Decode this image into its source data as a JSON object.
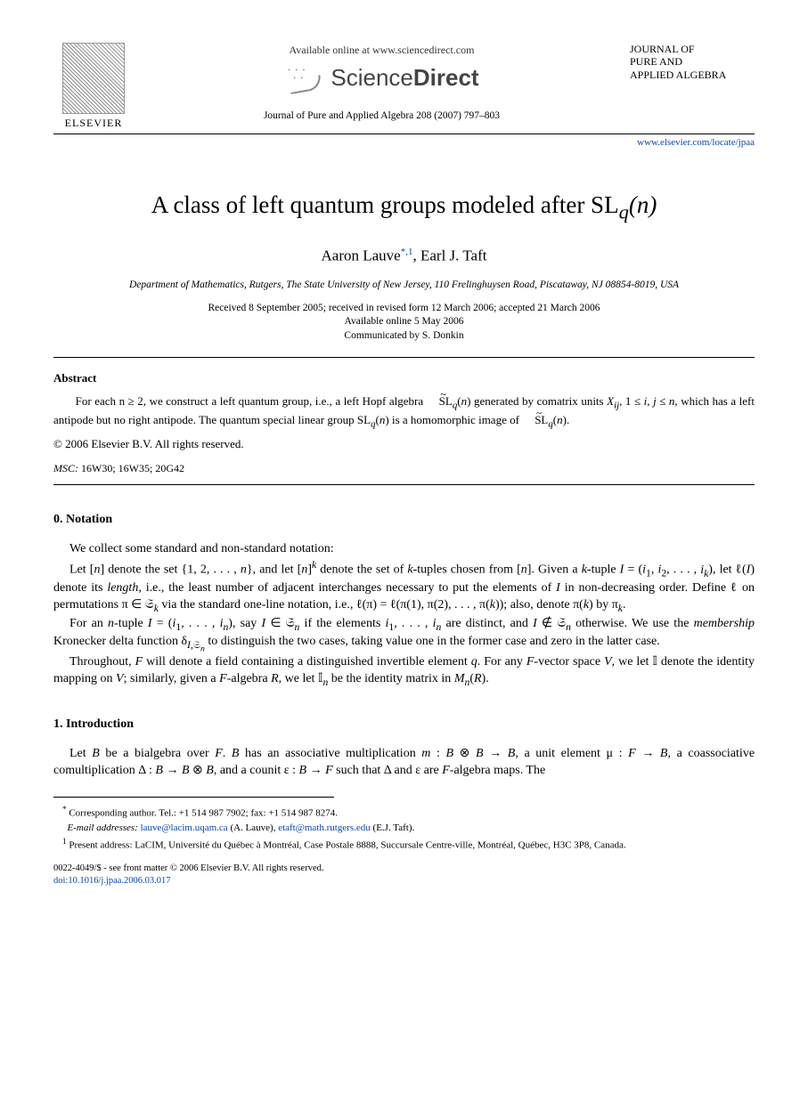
{
  "header": {
    "elsevier": "ELSEVIER",
    "available_online": "Available online at www.sciencedirect.com",
    "sciencedirect_a": "Science",
    "sciencedirect_b": "Direct",
    "journal_ref": "Journal of Pure and Applied Algebra 208 (2007) 797–803",
    "journal_name_l1": "JOURNAL OF",
    "journal_name_l2": "PURE AND",
    "journal_name_l3": "APPLIED ALGEBRA",
    "locate_url": "www.elsevier.com/locate/jpaa"
  },
  "title": {
    "main": "A class of left quantum groups modeled after SL",
    "sub_q": "q",
    "sub_n": "(n)"
  },
  "authors": {
    "a1": "Aaron Lauve",
    "a1_marks": "*,1",
    "sep": ", ",
    "a2": "Earl J. Taft"
  },
  "affiliation": "Department of Mathematics, Rutgers, The State University of New Jersey, 110 Frelinghuysen Road, Piscataway, NJ 08854-8019, USA",
  "dates": {
    "l1": "Received 8 September 2005; received in revised form 12 March 2006; accepted 21 March 2006",
    "l2": "Available online 5 May 2006",
    "l3": "Communicated by S. Donkin"
  },
  "abstract": {
    "head": "Abstract",
    "body": "For each n ≥ 2, we construct a left quantum group, i.e., a left Hopf algebra S̃L_q(n) generated by comatrix units X_{ij}, 1 ≤ i, j ≤ n, which has a left antipode but no right antipode. The quantum special linear group SL_q(n) is a homomorphic image of S̃L_q(n).",
    "copyright": "© 2006 Elsevier B.V. All rights reserved.",
    "msc_label": "MSC:",
    "msc_codes": " 16W30; 16W35; 20G42"
  },
  "sec0": {
    "head": "0.  Notation",
    "p1": "We collect some standard and non-standard notation:",
    "p2": "Let [n] denote the set {1, 2, . . . , n}, and let [n]^k denote the set of k-tuples chosen from [n]. Given a k-tuple I = (i₁, i₂, . . . , i_k), let ℓ(I) denote its length, i.e., the least number of adjacent interchanges necessary to put the elements of I in non-decreasing order. Define ℓ on permutations π ∈ 𝔖_k via the standard one-line notation, i.e., ℓ(π) = ℓ(π(1), π(2), . . . , π(k)); also, denote π(k) by π_k.",
    "p3": "For an n-tuple I = (i₁, . . . , i_n), say I ∈ 𝔖_n if the elements i₁, . . . , i_n are distinct, and I ∉ 𝔖_n otherwise. We use the membership Kronecker delta function δ_{I,𝔖_n} to distinguish the two cases, taking value one in the former case and zero in the latter case.",
    "p4": "Throughout, F will denote a field containing a distinguished invertible element q. For any F-vector space V, we let 𝕀 denote the identity mapping on V; similarly, given a F-algebra R, we let 𝕀_n be the identity matrix in M_n(R)."
  },
  "sec1": {
    "head": "1.  Introduction",
    "p1": "Let B be a bialgebra over F. B has an associative multiplication m : B ⊗ B → B, a unit element μ : F → B, a coassociative comultiplication Δ : B → B ⊗ B, and a counit ε : B → F such that Δ and ε are F-algebra maps. The"
  },
  "footnotes": {
    "corr": "Corresponding author. Tel.: +1 514 987 7902; fax: +1 514 987 8274.",
    "email_label": "E-mail addresses:",
    "email1": "lauve@lacim.uqam.ca",
    "email1_who": " (A. Lauve), ",
    "email2": "etaft@math.rutgers.edu",
    "email2_who": " (E.J. Taft).",
    "present": "Present address: LaCIM, Université du Québec à Montréal, Case Postale 8888, Succursale Centre-ville, Montréal, Québec, H3C 3P8, Canada."
  },
  "front_matter": {
    "l1": "0022-4049/$ - see front matter © 2006 Elsevier B.V. All rights reserved.",
    "doi_label": "doi:",
    "doi": "10.1016/j.jpaa.2006.03.017"
  }
}
